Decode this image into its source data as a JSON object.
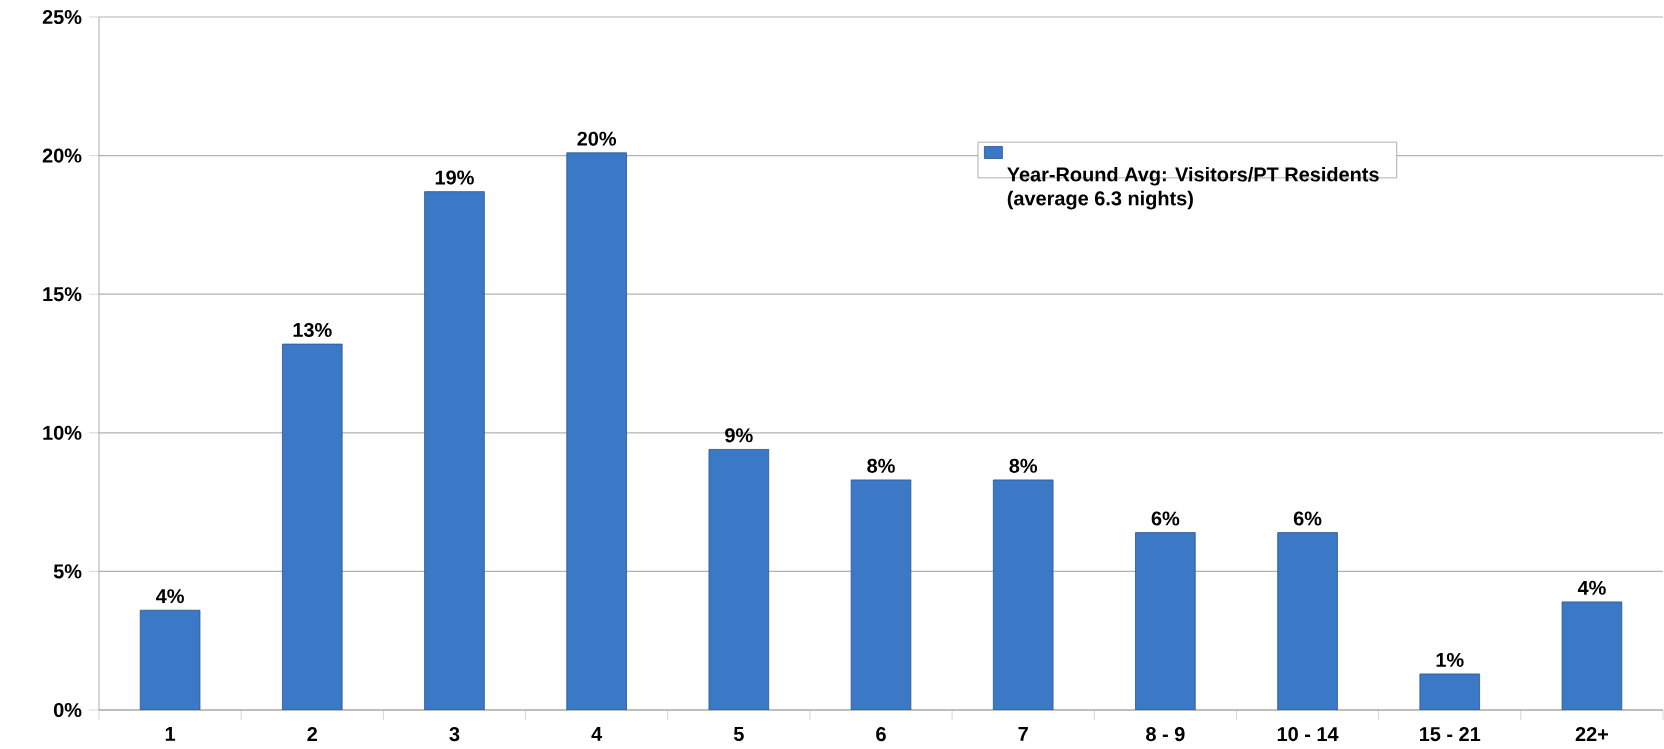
{
  "chart_data": {
    "type": "bar",
    "categories": [
      "1",
      "2",
      "3",
      "4",
      "5",
      "6",
      "7",
      "8 - 9",
      "10 - 14",
      "15 - 21",
      "22+"
    ],
    "series": [
      {
        "name": "Year-Round Avg: Visitors/PT Residents (average 6.3 nights)",
        "color": "#3b78c6",
        "values": [
          3.6,
          13.2,
          18.7,
          20.1,
          9.4,
          8.3,
          8.3,
          6.4,
          6.4,
          1.3,
          3.9
        ],
        "value_labels": [
          "4%",
          "13%",
          "19%",
          "20%",
          "9%",
          "8%",
          "8%",
          "6%",
          "6%",
          "1%",
          "4%"
        ]
      }
    ],
    "ylim": [
      0,
      25
    ],
    "yticks": [
      {
        "value": 0,
        "label": "0%"
      },
      {
        "value": 5,
        "label": "5%"
      },
      {
        "value": 10,
        "label": "10%"
      },
      {
        "value": 15,
        "label": "15%"
      },
      {
        "value": 20,
        "label": "20%"
      },
      {
        "value": 25,
        "label": "25%"
      }
    ],
    "grid": "y",
    "legend": "top right"
  }
}
